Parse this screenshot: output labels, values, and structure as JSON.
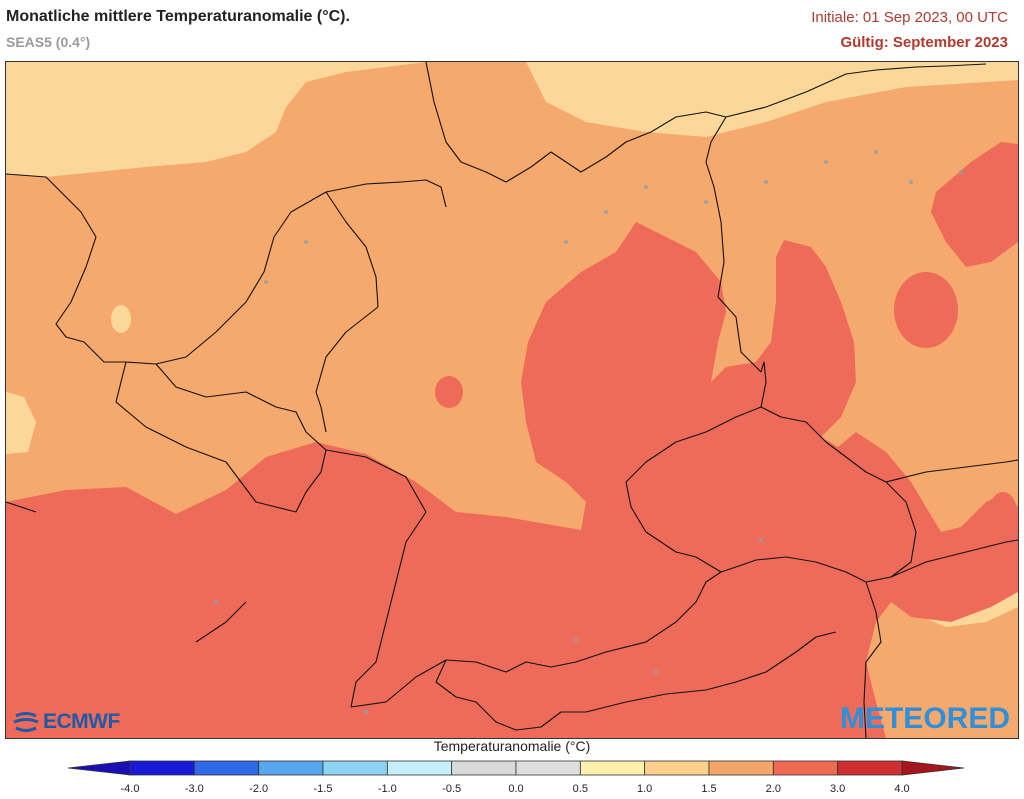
{
  "header": {
    "title": "Monatliche mittlere Temperaturanomalie (°C).",
    "subtitle": "SEAS5 (0.4°)",
    "initial": "Initiale: 01 Sep 2023, 00 UTC",
    "valid": "Gültig: September 2023"
  },
  "logos": {
    "ecmwf": "ECMWF",
    "meteored": "METEORED"
  },
  "colorbar": {
    "title": "Temperaturanomalie (°C)",
    "ticks": [
      "-4.0",
      "-3.0",
      "-2.0",
      "-1.5",
      "-1.0",
      "-0.5",
      "0.0",
      "0.5",
      "1.0",
      "1.5",
      "2.0",
      "3.0",
      "4.0"
    ],
    "colors": [
      "#1a1ad6",
      "#2e6ae6",
      "#56a6ee",
      "#8fd3f3",
      "#c6eef7",
      "#d9d9d9",
      "#dedede",
      "#fbf1ad",
      "#fbd08c",
      "#f5a76a",
      "#ee6a55",
      "#cf2f32"
    ],
    "low_color": "#1a0fb0",
    "high_color": "#a8141c"
  },
  "map_colors": {
    "band_1_0_to_1_5": "#fbd89a",
    "band_1_5_to_2_0": "#f5a96c",
    "band_2_0_to_3_0": "#ee6b5a",
    "lakes": "#8aa0b5",
    "borders": "#111111"
  }
}
